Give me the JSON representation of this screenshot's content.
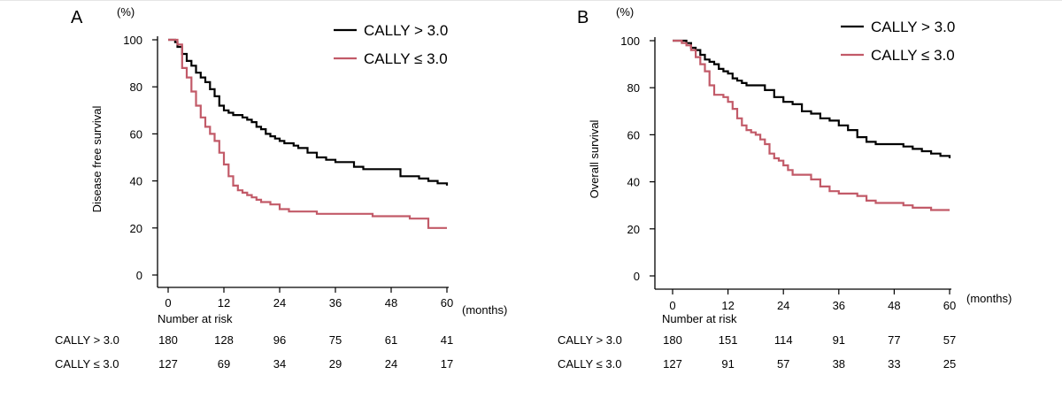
{
  "colors": {
    "high": "#000000",
    "low": "#c25a68"
  },
  "chart_data": [
    {
      "type": "line",
      "panel": "A",
      "ylabel": "Disease free survival",
      "yunit": "(%)",
      "xunit": "(months)",
      "xlim": [
        0,
        60
      ],
      "ylim": [
        0,
        100
      ],
      "xticks": [
        0,
        12,
        24,
        36,
        48,
        60
      ],
      "yticks": [
        0,
        20,
        40,
        60,
        80,
        100
      ],
      "legend": [
        "CALLY > 3.0",
        "CALLY ≤ 3.0"
      ],
      "series": [
        {
          "name": "CALLY > 3.0",
          "x": [
            0,
            1.5,
            2,
            3,
            4,
            5,
            6,
            7,
            8,
            9,
            10,
            11,
            12,
            13,
            14,
            15,
            16,
            17,
            18,
            19,
            20,
            21,
            22,
            23,
            24,
            25,
            26,
            27,
            28,
            30,
            32,
            34,
            36,
            38,
            40,
            42,
            44,
            46,
            48,
            50,
            52,
            54,
            56,
            58,
            60
          ],
          "y": [
            100,
            99,
            97,
            94,
            91,
            89,
            86,
            84,
            82,
            79,
            76,
            72,
            70,
            69,
            68,
            68,
            67,
            66,
            65,
            63,
            62,
            60,
            59,
            58,
            57,
            56,
            56,
            55,
            54,
            52,
            50,
            49,
            48,
            48,
            46,
            45,
            45,
            45,
            45,
            42,
            42,
            41,
            40,
            39,
            38
          ]
        },
        {
          "name": "CALLY ≤ 3.0",
          "x": [
            0,
            2,
            3,
            4,
            5,
            6,
            7,
            8,
            9,
            10,
            11,
            12,
            13,
            14,
            15,
            16,
            17,
            18,
            19,
            20,
            21,
            22,
            24,
            26,
            28,
            30,
            32,
            34,
            36,
            40,
            44,
            48,
            52,
            54,
            56,
            58,
            60
          ],
          "y": [
            100,
            98,
            88,
            84,
            78,
            72,
            67,
            63,
            60,
            57,
            52,
            47,
            42,
            38,
            36,
            35,
            34,
            33,
            32,
            31,
            31,
            30,
            28,
            27,
            27,
            27,
            26,
            26,
            26,
            26,
            25,
            25,
            24,
            24,
            20,
            20,
            20
          ]
        }
      ],
      "risk_table": {
        "title": "Number at risk",
        "rows": [
          {
            "label": "CALLY > 3.0",
            "values": [
              "180",
              "128",
              "96",
              "75",
              "61",
              "41"
            ]
          },
          {
            "label": "CALLY ≤ 3.0",
            "values": [
              "127",
              "69",
              "34",
              "29",
              "24",
              "17"
            ]
          }
        ]
      }
    },
    {
      "type": "line",
      "panel": "B",
      "ylabel": "Overall survival",
      "yunit": "(%)",
      "xunit": "(months)",
      "xlim": [
        0,
        60
      ],
      "ylim": [
        0,
        100
      ],
      "xticks": [
        0,
        12,
        24,
        36,
        48,
        60
      ],
      "yticks": [
        0,
        20,
        40,
        60,
        80,
        100
      ],
      "legend": [
        "CALLY > 3.0",
        "CALLY ≤ 3.0"
      ],
      "series": [
        {
          "name": "CALLY > 3.0",
          "x": [
            0,
            2,
            3,
            4,
            5,
            6,
            7,
            8,
            9,
            10,
            11,
            12,
            13,
            14,
            15,
            16,
            18,
            20,
            22,
            24,
            26,
            28,
            30,
            32,
            34,
            36,
            38,
            40,
            42,
            44,
            46,
            48,
            50,
            52,
            54,
            56,
            58,
            60
          ],
          "y": [
            100,
            100,
            99,
            97,
            96,
            94,
            92,
            91,
            90,
            88,
            87,
            86,
            84,
            83,
            82,
            81,
            81,
            79,
            76,
            74,
            73,
            70,
            69,
            67,
            66,
            64,
            62,
            59,
            57,
            56,
            56,
            56,
            55,
            54,
            53,
            52,
            51,
            50
          ]
        },
        {
          "name": "CALLY ≤ 3.0",
          "x": [
            0,
            2,
            3,
            4,
            5,
            6,
            7,
            8,
            9,
            10,
            11,
            12,
            13,
            14,
            15,
            16,
            17,
            18,
            19,
            20,
            21,
            22,
            23,
            24,
            25,
            26,
            28,
            30,
            32,
            34,
            36,
            38,
            40,
            42,
            44,
            46,
            48,
            50,
            52,
            56,
            60
          ],
          "y": [
            100,
            99,
            98,
            96,
            93,
            90,
            87,
            81,
            77,
            77,
            76,
            74,
            71,
            67,
            64,
            62,
            61,
            60,
            58,
            56,
            52,
            50,
            49,
            47,
            45,
            43,
            43,
            41,
            38,
            36,
            35,
            35,
            34,
            32,
            31,
            31,
            31,
            30,
            29,
            28,
            28
          ]
        }
      ],
      "risk_table": {
        "title": "Number at risk",
        "rows": [
          {
            "label": "CALLY > 3.0",
            "values": [
              "180",
              "151",
              "114",
              "91",
              "77",
              "57"
            ]
          },
          {
            "label": "CALLY ≤ 3.0",
            "values": [
              "127",
              "91",
              "57",
              "38",
              "33",
              "25"
            ]
          }
        ]
      }
    }
  ]
}
